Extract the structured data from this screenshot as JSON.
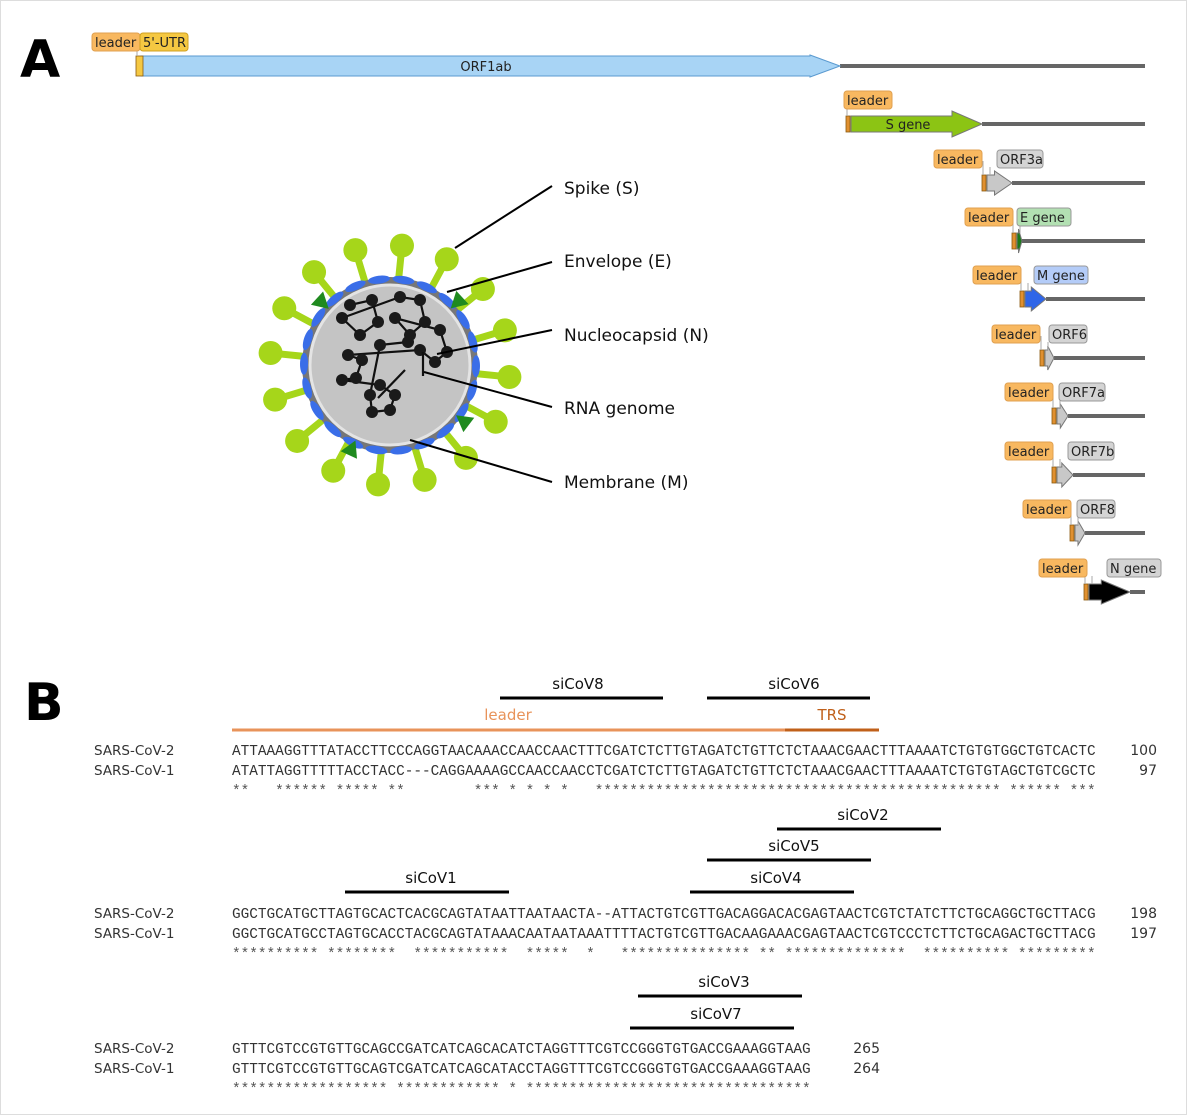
{
  "panel_a": {
    "label": "A",
    "genome": [
      {
        "leader": "leader",
        "extra": "5'-UTR",
        "gene": "ORF1ab",
        "color": "#a8d4f5",
        "label_inside": true
      },
      {
        "leader": "leader",
        "gene": "S gene",
        "color": "#8cc414",
        "label_inside": true
      },
      {
        "leader": "leader",
        "gene": "ORF3a",
        "color": "#c8c8c8",
        "label_color": "#d4d4d4"
      },
      {
        "leader": "leader",
        "gene": "E gene",
        "color": "#1a7a1a",
        "label_color": "#b2e0b2"
      },
      {
        "leader": "leader",
        "gene": "M gene",
        "color": "#2f66e8",
        "label_color": "#b4ccf8"
      },
      {
        "leader": "leader",
        "gene": "ORF6",
        "color": "#c8c8c8",
        "label_color": "#d4d4d4"
      },
      {
        "leader": "leader",
        "gene": "ORF7a",
        "color": "#c8c8c8",
        "label_color": "#d4d4d4"
      },
      {
        "leader": "leader",
        "gene": "ORF7b",
        "color": "#c8c8c8",
        "label_color": "#d4d4d4"
      },
      {
        "leader": "leader",
        "gene": "ORF8",
        "color": "#c8c8c8",
        "label_color": "#d4d4d4"
      },
      {
        "leader": "leader",
        "gene": "N gene",
        "color": "#000000",
        "label_color": "#d4d4d4"
      }
    ],
    "virion_labels": [
      "Spike (S)",
      "Envelope (E)",
      "Nucleocapsid (N)",
      "RNA genome",
      "Membrane (M)"
    ],
    "colors": {
      "leader": "#f8b860",
      "utr": "#f5c842",
      "backbone": "#666666",
      "spike": "#a6d61a",
      "envelope": "#1f8a1f",
      "membrane": "#3a6ee8",
      "core": "#c4c4c4",
      "shell": "#777777"
    }
  },
  "panel_b": {
    "label": "B",
    "regions": {
      "leader": "leader",
      "trs": "TRS",
      "leader_color": "#e8935a",
      "trs_color": "#c0601a"
    },
    "sirnas": [
      "siCoV8",
      "siCoV6",
      "siCoV2",
      "siCoV5",
      "siCoV1",
      "siCoV4",
      "siCoV3",
      "siCoV7"
    ],
    "blocks": [
      {
        "rows": [
          {
            "name": "SARS-CoV-2",
            "seq": "ATTAAAGGTTTATACCTTCCCAGGTAACAAACCAACCAACTTTCGATCTCTTGTAGATCTGTTCTCTAAACGAACTTTAAAATCTGTGTGGCTGTCACTC",
            "pos": "100"
          },
          {
            "name": "SARS-CoV-1",
            "seq": "ATATTAGGTTTTTACCTACC---CAGGAAAAGCCAACCAACCTCGATCTCTTGTAGATCTGTTCTCTAAACGAACTTTAAAATCTGTGTAGCTGTCGCTC",
            "pos": "97"
          }
        ],
        "conservation": "**   ****** ***** **        *** * * * *   *********************************************** ****** ***"
      },
      {
        "rows": [
          {
            "name": "SARS-CoV-2",
            "seq": "GGCTGCATGCTTAGTGCACTCACGCAGTATAATTAATAACTA--ATTACTGTCGTTGACAGGACACGAGTAACTCGTCTATCTTCTGCAGGCTGCTTACG",
            "pos": "198"
          },
          {
            "name": "SARS-CoV-1",
            "seq": "GGCTGCATGCCTAGTGCACCTACGCAGTATAAACAATAATAAATTTTACTGTCGTTGACAAGAAACGAGTAACTCGTCCCTCTTCTGCAGACTGCTTACG",
            "pos": "197"
          }
        ],
        "conservation": "********** ********  ***********  *****  *   *************** ** **************  ********** *********"
      },
      {
        "rows": [
          {
            "name": "SARS-CoV-2",
            "seq": "GTTTCGTCCGTGTTGCAGCCGATCATCAGCACATCTAGGTTTCGTCCGGGTGTGACCGAAAGGTAAG",
            "pos": "265"
          },
          {
            "name": "SARS-CoV-1",
            "seq": "GTTTCGTCCGTGTTGCAGTCGATCATCAGCATACCTAGGTTTCGTCCGGGTGTGACCGAAAGGTAAG",
            "pos": "264"
          }
        ],
        "conservation": "****************** ************ * *********************************"
      }
    ]
  }
}
